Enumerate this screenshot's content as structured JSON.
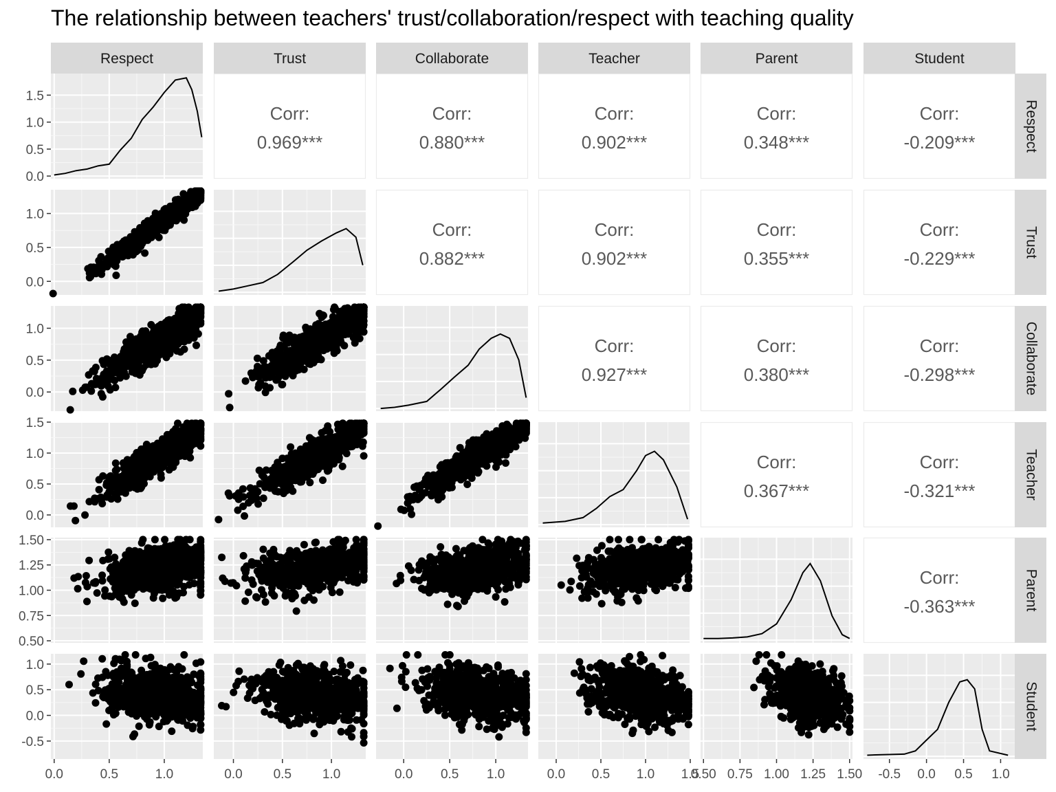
{
  "title": "The relationship between teachers' trust/collaboration/respect with teaching quality",
  "chart_data": {
    "type": "scatter",
    "subtype": "pairs-matrix",
    "variables": [
      "Respect",
      "Trust",
      "Collaborate",
      "Teacher",
      "Parent",
      "Student"
    ],
    "grid": true,
    "diagonal": "density",
    "upper": "correlation",
    "lower": "scatter",
    "corr_label": "Corr:",
    "correlations": [
      {
        "row": "Respect",
        "col": "Trust",
        "label": "0.969***"
      },
      {
        "row": "Respect",
        "col": "Collaborate",
        "label": "0.880***"
      },
      {
        "row": "Respect",
        "col": "Teacher",
        "label": "0.902***"
      },
      {
        "row": "Respect",
        "col": "Parent",
        "label": "0.348***"
      },
      {
        "row": "Respect",
        "col": "Student",
        "label": "-0.209***"
      },
      {
        "row": "Trust",
        "col": "Collaborate",
        "label": "0.882***"
      },
      {
        "row": "Trust",
        "col": "Teacher",
        "label": "0.902***"
      },
      {
        "row": "Trust",
        "col": "Parent",
        "label": "0.355***"
      },
      {
        "row": "Trust",
        "col": "Student",
        "label": "-0.229***"
      },
      {
        "row": "Collaborate",
        "col": "Teacher",
        "label": "0.927***"
      },
      {
        "row": "Collaborate",
        "col": "Parent",
        "label": "0.380***"
      },
      {
        "row": "Collaborate",
        "col": "Student",
        "label": "-0.298***"
      },
      {
        "row": "Teacher",
        "col": "Parent",
        "label": "0.367***"
      },
      {
        "row": "Teacher",
        "col": "Student",
        "label": "-0.321***"
      },
      {
        "row": "Parent",
        "col": "Student",
        "label": "-0.363***"
      }
    ],
    "axes": {
      "Respect": {
        "lim": [
          -0.03,
          1.35
        ],
        "ticks": [
          0.0,
          0.5,
          1.0
        ],
        "tick_labels": [
          "0.0",
          "0.5",
          "1.0"
        ]
      },
      "Trust": {
        "lim": [
          -0.2,
          1.35
        ],
        "ticks": [
          0.0,
          0.5,
          1.0
        ],
        "tick_labels": [
          "0.0",
          "0.5",
          "1.0"
        ]
      },
      "Collaborate": {
        "lim": [
          -0.3,
          1.35
        ],
        "ticks": [
          0.0,
          0.5,
          1.0
        ],
        "tick_labels": [
          "0.0",
          "0.5",
          "1.0"
        ]
      },
      "Teacher": {
        "lim": [
          -0.2,
          1.5
        ],
        "ticks": [
          0.0,
          0.5,
          1.0,
          1.5
        ],
        "tick_labels": [
          "0.0",
          "0.5",
          "1.0",
          "1.5"
        ]
      },
      "Parent": {
        "lim": [
          0.48,
          1.52
        ],
        "ticks": [
          0.5,
          0.75,
          1.0,
          1.25,
          1.5
        ],
        "tick_labels": [
          "0.50",
          "0.75",
          "1.00",
          "1.25",
          "1.50"
        ]
      },
      "Student": {
        "lim": [
          -0.85,
          1.2
        ],
        "ticks": [
          -0.5,
          0.0,
          0.5,
          1.0
        ],
        "tick_labels": [
          "-0.5",
          "0.0",
          "0.5",
          "1.0"
        ]
      }
    },
    "density_axis": {
      "lim": [
        -0.05,
        1.9
      ],
      "ticks": [
        0.0,
        0.5,
        1.0,
        1.5
      ],
      "tick_labels": [
        "0.0",
        "0.5",
        "1.0",
        "1.5"
      ]
    },
    "densities": {
      "Respect": [
        [
          0.0,
          0.02
        ],
        [
          0.1,
          0.05
        ],
        [
          0.2,
          0.1
        ],
        [
          0.3,
          0.13
        ],
        [
          0.4,
          0.19
        ],
        [
          0.5,
          0.22
        ],
        [
          0.6,
          0.48
        ],
        [
          0.7,
          0.7
        ],
        [
          0.8,
          1.05
        ],
        [
          0.9,
          1.28
        ],
        [
          1.0,
          1.55
        ],
        [
          1.1,
          1.78
        ],
        [
          1.2,
          1.82
        ],
        [
          1.25,
          1.6
        ],
        [
          1.3,
          1.2
        ],
        [
          1.34,
          0.72
        ]
      ],
      "Trust": [
        [
          -0.15,
          0.02
        ],
        [
          0.0,
          0.06
        ],
        [
          0.15,
          0.12
        ],
        [
          0.3,
          0.18
        ],
        [
          0.45,
          0.33
        ],
        [
          0.6,
          0.55
        ],
        [
          0.75,
          0.78
        ],
        [
          0.9,
          0.95
        ],
        [
          1.05,
          1.1
        ],
        [
          1.15,
          1.18
        ],
        [
          1.25,
          1.02
        ],
        [
          1.32,
          0.5
        ]
      ],
      "Collaborate": [
        [
          -0.25,
          0.0
        ],
        [
          -0.1,
          0.02
        ],
        [
          0.05,
          0.06
        ],
        [
          0.25,
          0.13
        ],
        [
          0.4,
          0.35
        ],
        [
          0.55,
          0.58
        ],
        [
          0.7,
          0.8
        ],
        [
          0.82,
          1.1
        ],
        [
          0.95,
          1.3
        ],
        [
          1.05,
          1.38
        ],
        [
          1.15,
          1.3
        ],
        [
          1.25,
          0.9
        ],
        [
          1.33,
          0.2
        ]
      ],
      "Teacher": [
        [
          -0.15,
          0.03
        ],
        [
          0.1,
          0.06
        ],
        [
          0.3,
          0.13
        ],
        [
          0.45,
          0.3
        ],
        [
          0.6,
          0.52
        ],
        [
          0.75,
          0.65
        ],
        [
          0.9,
          1.0
        ],
        [
          1.0,
          1.28
        ],
        [
          1.1,
          1.36
        ],
        [
          1.2,
          1.2
        ],
        [
          1.35,
          0.7
        ],
        [
          1.47,
          0.1
        ]
      ],
      "Parent": [
        [
          0.5,
          0.03
        ],
        [
          0.6,
          0.03
        ],
        [
          0.7,
          0.04
        ],
        [
          0.8,
          0.06
        ],
        [
          0.9,
          0.12
        ],
        [
          1.0,
          0.3
        ],
        [
          1.1,
          0.75
        ],
        [
          1.18,
          1.25
        ],
        [
          1.23,
          1.42
        ],
        [
          1.3,
          1.1
        ],
        [
          1.38,
          0.45
        ],
        [
          1.45,
          0.1
        ],
        [
          1.5,
          0.03
        ]
      ],
      "Student": [
        [
          -0.8,
          0.02
        ],
        [
          -0.6,
          0.03
        ],
        [
          -0.3,
          0.04
        ],
        [
          -0.15,
          0.1
        ],
        [
          0.0,
          0.3
        ],
        [
          0.15,
          0.5
        ],
        [
          0.3,
          1.0
        ],
        [
          0.45,
          1.38
        ],
        [
          0.55,
          1.42
        ],
        [
          0.65,
          1.25
        ],
        [
          0.75,
          0.5
        ],
        [
          0.85,
          0.1
        ],
        [
          1.1,
          0.02
        ]
      ]
    },
    "scatter_note": "lower panels: pairwise scatter of observations (approx. 1000 points per panel)"
  }
}
